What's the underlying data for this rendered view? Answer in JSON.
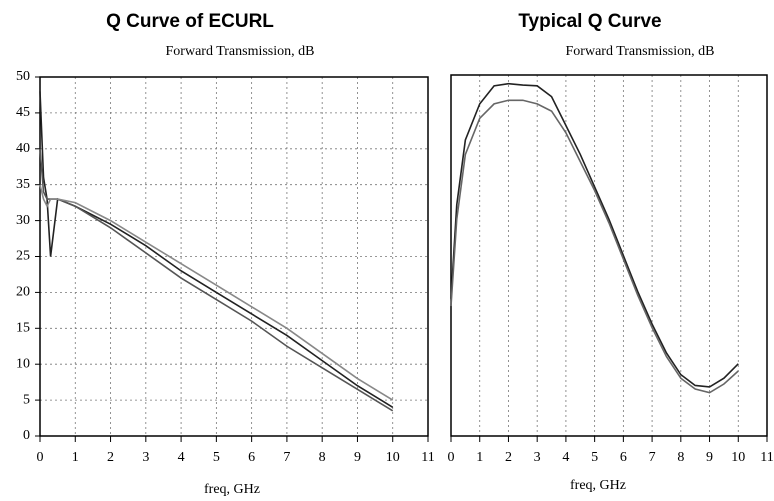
{
  "chart_data": [
    {
      "type": "line",
      "title": "Q Curve of ECURL",
      "subtitle": "Forward Transmission, dB",
      "x_label": "freq, GHz",
      "x": [
        0,
        0.1,
        0.2,
        0.3,
        0.5,
        1,
        2,
        3,
        4,
        5,
        6,
        7,
        8,
        9,
        10
      ],
      "series": [
        {
          "color": "#222222",
          "values": [
            48,
            36,
            33,
            25,
            33,
            32,
            29.5,
            26.5,
            23,
            20,
            17,
            14,
            10.5,
            7,
            4
          ]
        },
        {
          "color": "#555555",
          "values": [
            40,
            34,
            33,
            33,
            33,
            32,
            29,
            25.5,
            22,
            19,
            16,
            12.5,
            9.5,
            6.5,
            3.5
          ]
        },
        {
          "color": "#888888",
          "values": [
            35,
            33,
            32,
            33,
            33,
            32.5,
            30,
            27,
            24,
            21,
            18,
            15,
            11.5,
            8,
            5
          ]
        }
      ],
      "xlim": [
        0,
        11
      ],
      "xticks": [
        0,
        1,
        2,
        3,
        4,
        5,
        6,
        7,
        8,
        9,
        10,
        11
      ],
      "ylim": [
        0,
        50
      ],
      "yticks": [
        0,
        5,
        10,
        15,
        20,
        25,
        30,
        35,
        40,
        45,
        50
      ],
      "grid": true
    },
    {
      "type": "line",
      "title": "Typical Q Curve",
      "subtitle": "Forward Transmission, dB",
      "x_label": "freq, GHz",
      "x": [
        0,
        0.2,
        0.5,
        1,
        1.5,
        2,
        2.5,
        3,
        3.5,
        4,
        4.5,
        5,
        5.5,
        6,
        6.5,
        7,
        7.5,
        8,
        8.5,
        9,
        9.5,
        10
      ],
      "series": [
        {
          "color": "#222222",
          "values": [
            19,
            32,
            41,
            46,
            48.5,
            48.8,
            48.6,
            48.5,
            47,
            43,
            39,
            34.5,
            30,
            25,
            20,
            15.5,
            11.5,
            8.5,
            7,
            6.8,
            8,
            10
          ]
        },
        {
          "color": "#666666",
          "values": [
            18,
            30,
            39,
            44,
            46,
            46.5,
            46.5,
            46,
            45,
            42,
            38,
            34,
            29.5,
            24.5,
            19.5,
            15,
            11,
            8,
            6.5,
            6,
            7.2,
            9
          ]
        }
      ],
      "xlim": [
        0,
        11
      ],
      "xticks": [
        0,
        1,
        2,
        3,
        4,
        5,
        6,
        7,
        8,
        9,
        10,
        11
      ],
      "ylim": [
        0,
        50
      ],
      "grid": true
    }
  ]
}
